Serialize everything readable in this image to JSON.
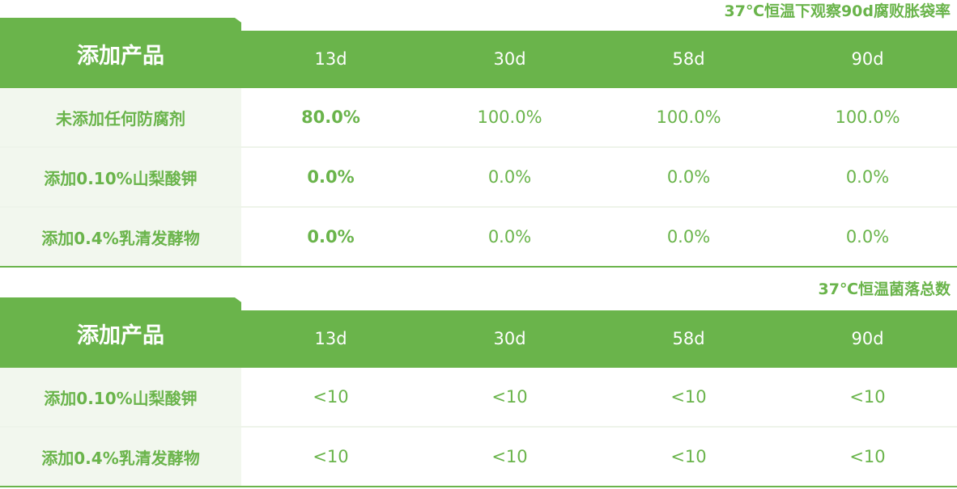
{
  "colors": {
    "accent": "#6ab44b",
    "label_bg": "#f2f7ee",
    "divider": "#eef4ea"
  },
  "table1": {
    "caption": "37℃恒温下观察90d腐败胀袋率",
    "header": {
      "title": "添加产品",
      "columns": [
        "13d",
        "30d",
        "58d",
        "90d"
      ]
    },
    "rows": [
      {
        "label": "未添加任何防腐剂",
        "values": [
          "80.0%",
          "100.0%",
          "100.0%",
          "100.0%"
        ]
      },
      {
        "label": "添加0.10%山梨酸钾",
        "values": [
          "0.0%",
          "0.0%",
          "0.0%",
          "0.0%"
        ]
      },
      {
        "label": "添加0.4%乳清发酵物",
        "values": [
          "0.0%",
          "0.0%",
          "0.0%",
          "0.0%"
        ]
      }
    ]
  },
  "table2": {
    "caption": "37℃恒温菌落总数",
    "header": {
      "title": "添加产品",
      "columns": [
        "13d",
        "30d",
        "58d",
        "90d"
      ]
    },
    "rows": [
      {
        "label": "添加0.10%山梨酸钾",
        "values": [
          "<10",
          "<10",
          "<10",
          "<10"
        ]
      },
      {
        "label": "添加0.4%乳清发酵物",
        "values": [
          "<10",
          "<10",
          "<10",
          "<10"
        ]
      }
    ]
  }
}
